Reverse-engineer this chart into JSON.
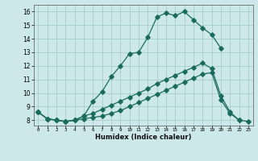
{
  "title": "",
  "xlabel": "Humidex (Indice chaleur)",
  "bg_color": "#cce8e8",
  "grid_color": "#a8cccc",
  "line_color": "#1a6b5e",
  "xlim": [
    -0.5,
    23.5
  ],
  "ylim": [
    7.6,
    16.5
  ],
  "xticks": [
    0,
    1,
    2,
    3,
    4,
    5,
    6,
    7,
    8,
    9,
    10,
    11,
    12,
    13,
    14,
    15,
    16,
    17,
    18,
    19,
    20,
    21,
    22,
    23
  ],
  "yticks": [
    8,
    9,
    10,
    11,
    12,
    13,
    14,
    15,
    16
  ],
  "line1_x": [
    0,
    1,
    2,
    3,
    4,
    5,
    6,
    7,
    8,
    9,
    10,
    11,
    12,
    13,
    14,
    15,
    16,
    17,
    18,
    19,
    20
  ],
  "line1_y": [
    8.6,
    8.1,
    8.0,
    7.9,
    8.0,
    8.3,
    9.4,
    10.1,
    11.2,
    12.0,
    12.9,
    13.0,
    14.1,
    15.6,
    15.9,
    15.7,
    16.0,
    15.4,
    14.8,
    14.3,
    13.3
  ],
  "line2_x": [
    0,
    1,
    2,
    3,
    4,
    5,
    6,
    7,
    8,
    9,
    10,
    11,
    12,
    13,
    14,
    15,
    16,
    17,
    18,
    19,
    20,
    21,
    22
  ],
  "line2_y": [
    8.6,
    8.1,
    8.0,
    7.9,
    8.0,
    8.3,
    8.5,
    8.8,
    9.1,
    9.4,
    9.7,
    10.0,
    10.3,
    10.7,
    11.0,
    11.3,
    11.6,
    11.9,
    12.2,
    11.8,
    9.8,
    8.6,
    8.0
  ],
  "line3_x": [
    0,
    1,
    2,
    3,
    4,
    5,
    6,
    7,
    8,
    9,
    10,
    11,
    12,
    13,
    14,
    15,
    16,
    17,
    18,
    19,
    20,
    21,
    22,
    23
  ],
  "line3_y": [
    8.6,
    8.1,
    8.0,
    7.9,
    8.0,
    8.1,
    8.2,
    8.3,
    8.5,
    8.7,
    9.0,
    9.3,
    9.6,
    9.9,
    10.2,
    10.5,
    10.8,
    11.1,
    11.4,
    11.5,
    9.5,
    8.5,
    8.0,
    7.9
  ]
}
